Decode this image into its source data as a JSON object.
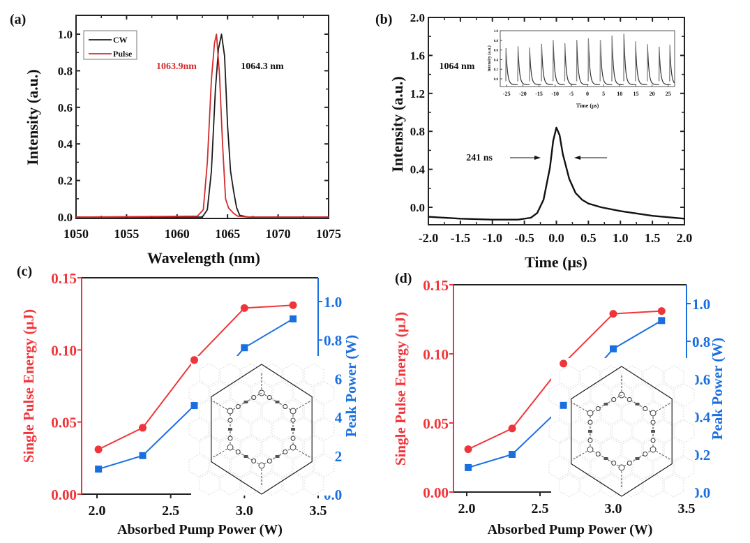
{
  "colors": {
    "cw": "#1a1a1a",
    "pulse": "#d42a2a",
    "energy": "#f0353a",
    "peak": "#1a6fe0",
    "axis": "#222222"
  },
  "chart_data": [
    {
      "id": "a",
      "panel_label": "(a)",
      "type": "line",
      "xlabel": "Wavelength (nm)",
      "ylabel": "Intensity (a.u.)",
      "xlim": [
        1050,
        1075
      ],
      "ylim": [
        0,
        1.1
      ],
      "xticks": [
        "1050",
        "1055",
        "1060",
        "1065",
        "1070",
        "1075"
      ],
      "yticks": [
        "0.0",
        "0.2",
        "0.4",
        "0.6",
        "0.8",
        "1.0"
      ],
      "legend": {
        "position": "top-left",
        "entries": [
          "CW",
          "Pulse"
        ]
      },
      "annotations": [
        {
          "text": "1063.9nm",
          "color": "pulse"
        },
        {
          "text": "1064.3 nm",
          "color": "cw"
        }
      ],
      "series": [
        {
          "name": "CW",
          "x": [
            1050,
            1062.5,
            1063.0,
            1063.4,
            1063.8,
            1064.1,
            1064.4,
            1064.7,
            1065.0,
            1065.3,
            1065.6,
            1065.9,
            1066.2,
            1067,
            1075
          ],
          "y": [
            0.0,
            0.0,
            0.04,
            0.25,
            0.7,
            0.92,
            1.0,
            0.88,
            0.5,
            0.25,
            0.14,
            0.05,
            0.01,
            0.0,
            0.0
          ]
        },
        {
          "name": "Pulse",
          "x": [
            1050,
            1062.0,
            1062.6,
            1063.0,
            1063.4,
            1063.7,
            1063.9,
            1064.2,
            1064.5,
            1064.8,
            1065.1,
            1065.6,
            1066.0,
            1067,
            1075
          ],
          "y": [
            0.0,
            0.005,
            0.04,
            0.3,
            0.75,
            0.95,
            1.0,
            0.78,
            0.4,
            0.1,
            0.05,
            0.02,
            0.005,
            0.0,
            0.0
          ]
        }
      ]
    },
    {
      "id": "b",
      "panel_label": "(b)",
      "type": "line",
      "xlabel": "Time (μs)",
      "ylabel": "Intensity (a.u.)",
      "xlim": [
        -2.0,
        2.0
      ],
      "ylim": [
        -0.18,
        2.0
      ],
      "xticks": [
        "-2.0",
        "-1.5",
        "-1.0",
        "-0.5",
        "0.0",
        "0.5",
        "1.0",
        "1.5",
        "2.0"
      ],
      "yticks": [
        "0.0",
        "0.4",
        "0.8",
        "1.2",
        "1.6",
        "2.0"
      ],
      "annotations": [
        {
          "text": "1064 nm"
        },
        {
          "text": "241 ns"
        }
      ],
      "series": [
        {
          "name": "Pulse",
          "x": [
            -2.0,
            -1.5,
            -1.0,
            -0.6,
            -0.4,
            -0.3,
            -0.2,
            -0.1,
            -0.05,
            0.0,
            0.05,
            0.1,
            0.2,
            0.3,
            0.4,
            0.5,
            0.7,
            1.0,
            1.5,
            2.0
          ],
          "y": [
            -0.1,
            -0.12,
            -0.13,
            -0.13,
            -0.11,
            -0.06,
            0.08,
            0.42,
            0.7,
            0.84,
            0.76,
            0.56,
            0.3,
            0.15,
            0.08,
            0.04,
            0.0,
            -0.04,
            -0.09,
            -0.12
          ]
        }
      ],
      "inset": {
        "type": "line",
        "xlabel": "Time (μs)",
        "ylabel": "Intensity (a.u.)",
        "xlim": [
          -27,
          27
        ],
        "ylim": [
          -0.15,
          1.0
        ],
        "xticks": [
          "-25",
          "-20",
          "-15",
          "-10",
          "-5",
          "0",
          "5",
          "10",
          "15",
          "20",
          "25"
        ],
        "yticks": [
          "0.0",
          "0.2",
          "0.4",
          "0.6",
          "0.8",
          "1.0"
        ],
        "pulse_times": [
          -25.2,
          -21.5,
          -17.9,
          -14.2,
          -10.6,
          -7.0,
          -3.3,
          0.3,
          4.0,
          7.6,
          11.3,
          14.9,
          18.6,
          22.2,
          25.5
        ],
        "pulse_peaks": [
          0.63,
          0.67,
          0.64,
          0.72,
          0.8,
          0.73,
          0.8,
          0.83,
          0.8,
          0.89,
          0.93,
          0.77,
          0.71,
          0.66,
          0.7
        ]
      }
    },
    {
      "id": "c",
      "panel_label": "(c)",
      "type": "line",
      "xlabel": "Absorbed Pump Power (W)",
      "ylabel_left": "Single Pulse Energy (μJ)",
      "ylabel_right": "Peak Power (W)",
      "xlim": [
        1.9,
        3.5
      ],
      "ylim_left": [
        0,
        0.15
      ],
      "ylim_right": [
        0,
        1.1
      ],
      "xticks": [
        "2.0",
        "2.5",
        "3.0",
        "3.5"
      ],
      "yticks_left": [
        "0.00",
        "0.05",
        "0.10",
        "0.15"
      ],
      "yticks_right": [
        "0.0",
        "0.2",
        "0.4",
        "0.6",
        "0.8",
        "1.0"
      ],
      "x": [
        2.01,
        2.31,
        2.66,
        3.0,
        3.33
      ],
      "series": [
        {
          "name": "Single Pulse Energy",
          "axis": "left",
          "marker": "circle",
          "values": [
            0.031,
            0.046,
            0.093,
            0.129,
            0.131
          ]
        },
        {
          "name": "Peak Power",
          "axis": "right",
          "marker": "square",
          "values": [
            0.13,
            0.2,
            0.46,
            0.76,
            0.91
          ]
        }
      ],
      "inset": "hexagonal-molecular-framework"
    },
    {
      "id": "d",
      "panel_label": "(d)",
      "type": "line",
      "xlabel": "Absorbed Pump Power (W)",
      "ylabel_left": "Single Pulse Energy (μJ)",
      "ylabel_right": "Peak Power (W)",
      "xlim": [
        1.9,
        3.5
      ],
      "ylim_left": [
        0,
        0.15
      ],
      "ylim_right": [
        0,
        1.1
      ],
      "xticks": [
        "2.0",
        "2.5",
        "3.0",
        "3.5"
      ],
      "yticks_left": [
        "0.00",
        "0.05",
        "0.10",
        "0.15"
      ],
      "yticks_right": [
        "0.0",
        "0.2",
        "0.4",
        "0.6",
        "0.8",
        "1.0"
      ],
      "x": [
        2.01,
        2.31,
        2.66,
        3.0,
        3.33
      ],
      "series": [
        {
          "name": "Single Pulse Energy",
          "axis": "left",
          "marker": "circle",
          "values": [
            0.031,
            0.046,
            0.093,
            0.129,
            0.131
          ]
        },
        {
          "name": "Peak Power",
          "axis": "right",
          "marker": "square",
          "values": [
            0.13,
            0.2,
            0.46,
            0.76,
            0.91
          ]
        }
      ],
      "inset": "hexagonal-molecular-framework"
    }
  ]
}
